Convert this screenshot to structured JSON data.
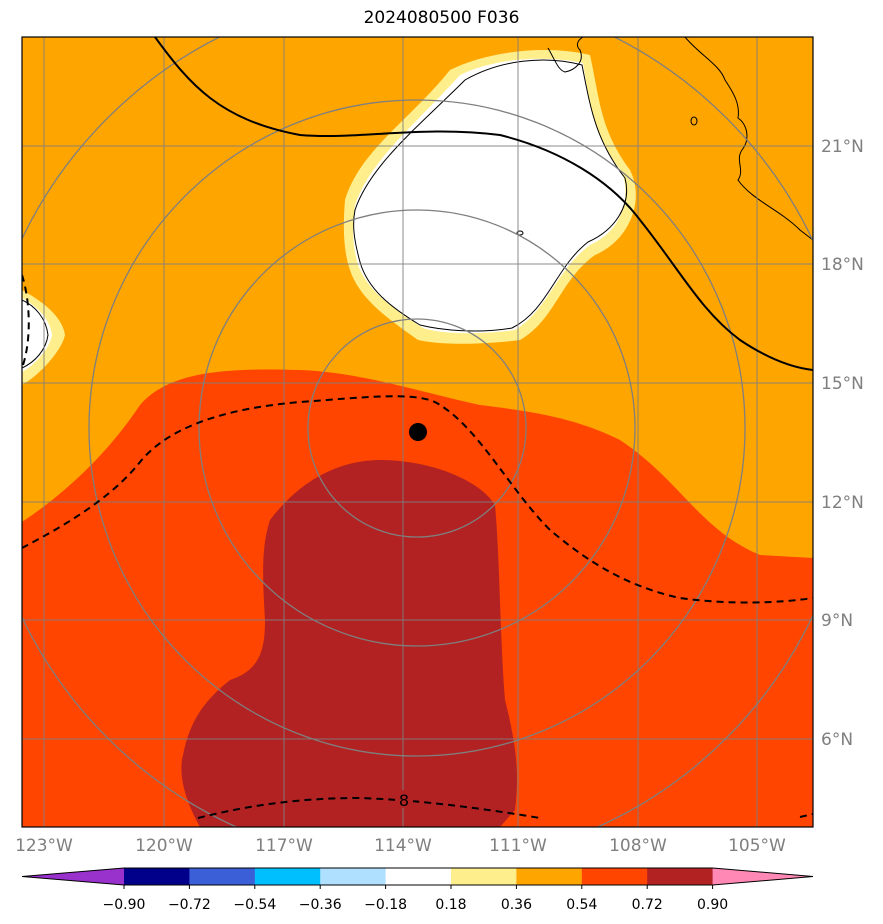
{
  "title": "2024080500 F036",
  "map": {
    "lon_ticks": [
      {
        "value": -123,
        "label": "123°W"
      },
      {
        "value": -120,
        "label": "120°W"
      },
      {
        "value": -117,
        "label": "117°W"
      },
      {
        "value": -114,
        "label": "114°W"
      },
      {
        "value": -111,
        "label": "111°W"
      },
      {
        "value": -108,
        "label": "108°W"
      },
      {
        "value": -105,
        "label": "105°W"
      }
    ],
    "lat_ticks": [
      {
        "value": 6,
        "label": "6°N"
      },
      {
        "value": 9,
        "label": "9°N"
      },
      {
        "value": 12,
        "label": "12°N"
      },
      {
        "value": 15,
        "label": "15°N"
      },
      {
        "value": 18,
        "label": "18°N"
      },
      {
        "value": 21,
        "label": "21°N"
      }
    ],
    "storm_center": {
      "lon": -113.7,
      "lat": 13.7
    },
    "contour_label": "8",
    "fill_colors": {
      "orange": "#ffa500",
      "orange_red": "#ff4500",
      "firebrick": "#b22222",
      "white": "#ffffff",
      "pale_yellow": "#ffee8c"
    }
  },
  "colorbar": {
    "colors": [
      "#9932cc",
      "#00008b",
      "#3b5fd6",
      "#00bfff",
      "#b0e0ff",
      "#ffffff",
      "#ffee8c",
      "#ffa500",
      "#ff4500",
      "#b22222",
      "#ff88b4"
    ],
    "labels": [
      "−0.90",
      "−0.72",
      "−0.54",
      "−0.36",
      "−0.18",
      "0.18",
      "0.36",
      "0.54",
      "0.72",
      "0.90"
    ]
  }
}
